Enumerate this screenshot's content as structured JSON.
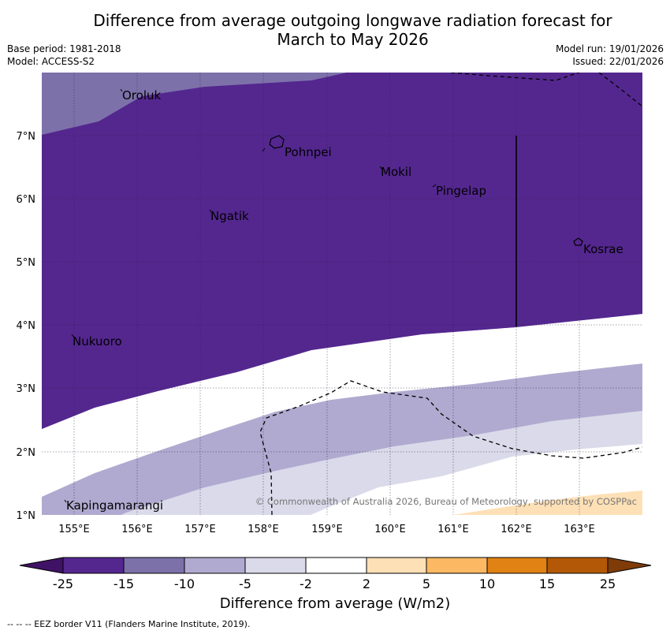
{
  "title": {
    "line1": "Difference from average outgoing longwave radiation forecast for",
    "line2": "March to May 2026"
  },
  "meta": {
    "base_period": "Base period: 1981-2018",
    "model": "Model: ACCESS-S2",
    "model_run": "Model run: 19/01/2026",
    "issued": "Issued: 22/01/2026"
  },
  "map": {
    "lon_ticks": [
      "155°E",
      "156°E",
      "157°E",
      "158°E",
      "159°E",
      "160°E",
      "161°E",
      "162°E",
      "163°E"
    ],
    "lat_ticks": [
      "7°N",
      "6°N",
      "5°N",
      "4°N",
      "3°N",
      "2°N",
      "1°N"
    ],
    "places": [
      "Oroluk",
      "Pohnpei",
      "Mokil",
      "Pingelap",
      "Ngatik",
      "Kosrae",
      "Nukuoro",
      "Kapingamarangi"
    ],
    "copyright": "© Commonwealth of Australia 2026, Bureau of Meteorology, supported by COSPPac"
  },
  "colorbar": {
    "ticks": [
      "-25",
      "-15",
      "-10",
      "-5",
      "-2",
      "2",
      "5",
      "10",
      "15",
      "25"
    ],
    "colors": [
      "#3f1266",
      "#54278f",
      "#7d71aa",
      "#b0aad0",
      "#dadaea",
      "#ffffff",
      "#fee0b6",
      "#fdb863",
      "#e08214",
      "#b35806",
      "#7f3b08"
    ],
    "title": "Difference from average (W/m2)"
  },
  "footnote": "--  --  -- EEZ border V11 (Flanders Marine Institute, 2019)."
}
